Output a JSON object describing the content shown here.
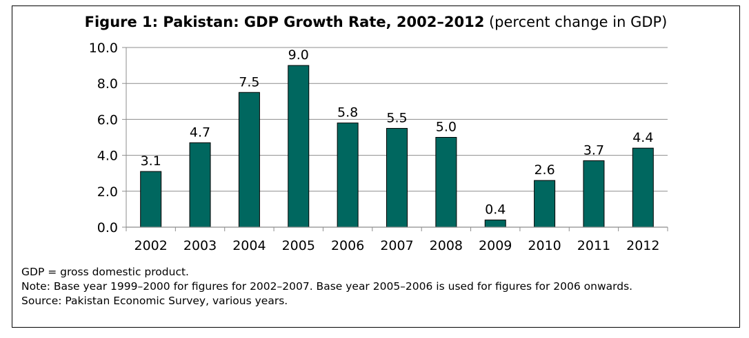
{
  "figure": {
    "title_bold": "Figure 1: Pakistan: GDP Growth Rate, 2002–2012",
    "title_normal": " (percent change in GDP)"
  },
  "notes": {
    "definition": "GDP = gross domestic product.",
    "note": "Note: Base year 1999–2000 for figures for 2002–2007. Base year 2005–2006 is used for figures for 2006 onwards.",
    "source": "Source: Pakistan Economic Survey, various years."
  },
  "chart_data": {
    "type": "bar",
    "title": "Figure 1: Pakistan: GDP Growth Rate, 2002–2012 (percent change in GDP)",
    "categories": [
      "2002",
      "2003",
      "2004",
      "2005",
      "2006",
      "2007",
      "2008",
      "2009",
      "2010",
      "2011",
      "2012"
    ],
    "values": [
      3.1,
      4.7,
      7.5,
      9.0,
      5.8,
      5.5,
      5.0,
      0.4,
      2.6,
      3.7,
      4.4
    ],
    "value_labels": [
      "3.1",
      "4.7",
      "7.5",
      "9.0",
      "5.8",
      "5.5",
      "5.0",
      "0.4",
      "2.6",
      "3.7",
      "4.4"
    ],
    "ylim": [
      0,
      10
    ],
    "yticks": [
      0,
      2,
      4,
      6,
      8,
      10
    ],
    "ytick_labels": [
      "0.0",
      "2.0",
      "4.0",
      "6.0",
      "8.0",
      "10.0"
    ],
    "grid": true,
    "legend": "none",
    "bar_color": "#00675F"
  }
}
